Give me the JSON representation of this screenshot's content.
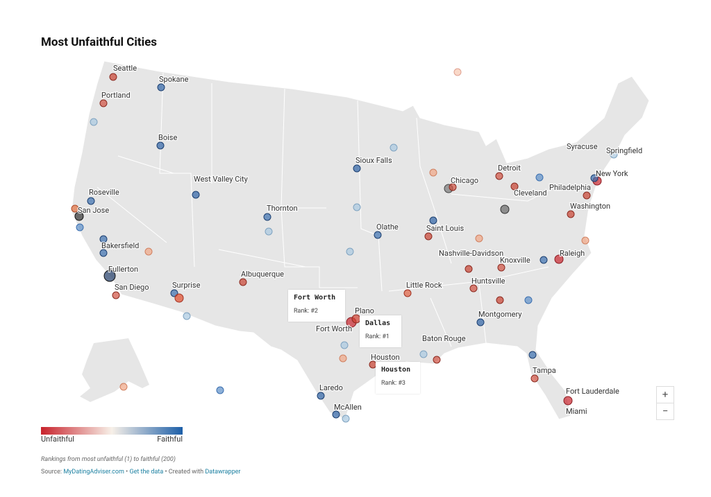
{
  "header": {
    "title": "Most Unfaithful Cities"
  },
  "cities": [
    {
      "label": "Seattle"
    },
    {
      "label": "Spokane"
    },
    {
      "label": "Portland"
    },
    {
      "label": "Boise"
    },
    {
      "label": "West Valley City"
    },
    {
      "label": "Roseville"
    },
    {
      "label": "San Jose"
    },
    {
      "label": "Thornton"
    },
    {
      "label": "Sioux Falls"
    },
    {
      "label": "Olathe"
    },
    {
      "label": "Bakersfield"
    },
    {
      "label": "Fullerton"
    },
    {
      "label": "San Diego"
    },
    {
      "label": "Surprise"
    },
    {
      "label": "Albuquerque"
    },
    {
      "label": "Syracuse"
    },
    {
      "label": "Springfield"
    },
    {
      "label": "Detroit"
    },
    {
      "label": "Chicago"
    },
    {
      "label": "New York"
    },
    {
      "label": "Cleveland"
    },
    {
      "label": "Philadelphia"
    },
    {
      "label": "Washington"
    },
    {
      "label": "Saint Louis"
    },
    {
      "label": "Nashville-Davidson"
    },
    {
      "label": "Knoxville"
    },
    {
      "label": "Raleigh"
    },
    {
      "label": "Huntsville"
    },
    {
      "label": "Little Rock"
    },
    {
      "label": "Plano"
    },
    {
      "label": "Fort Worth"
    },
    {
      "label": "Montgomery"
    },
    {
      "label": "Baton Rouge"
    },
    {
      "label": "Houston"
    },
    {
      "label": "Tampa"
    },
    {
      "label": "Laredo"
    },
    {
      "label": "McAllen"
    },
    {
      "label": "Fort Lauderdale"
    },
    {
      "label": "Miami"
    }
  ],
  "tooltips": [
    {
      "city": "Fort Worth",
      "rank": "Rank: #2"
    },
    {
      "city": "Dallas",
      "rank": "Rank: #1"
    },
    {
      "city": "Houston",
      "rank": "Rank: #3"
    }
  ],
  "legend": {
    "low": "Unfaithful",
    "high": "Faithful"
  },
  "controls": {
    "zoom_in": "+",
    "zoom_out": "−"
  },
  "footer": {
    "note": "Rankings from most unfaithful (1) to faithful (200)",
    "source_label": "Source:",
    "source": "MyDatingAdviser.com",
    "separator": "•",
    "get_data": "Get the data",
    "created_with": "Created with",
    "tool": "Datawrapper"
  }
}
